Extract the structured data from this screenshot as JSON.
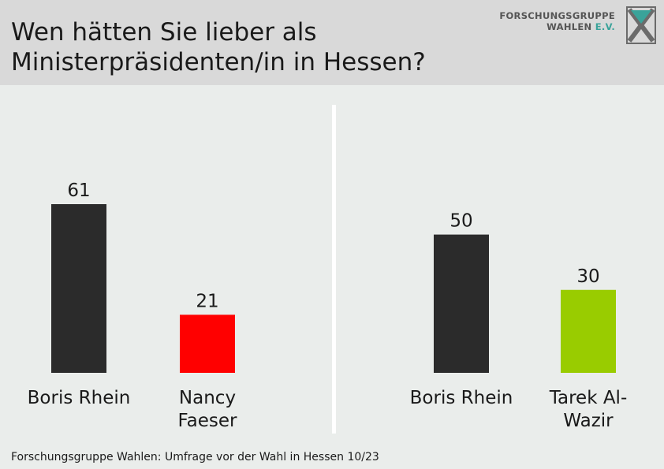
{
  "title": "Wen hätten Sie lieber als\nMinisterpräsidenten/in in Hessen?",
  "logo": {
    "line1": "FORSCHUNGSGRUPPE",
    "line2_main": "WAHLEN",
    "line2_suffix": "E.V."
  },
  "source": "Forschungsgruppe Wahlen: Umfrage vor der Wahl in Hessen 10/23",
  "chart_data": [
    {
      "type": "bar",
      "categories": [
        "Boris Rhein",
        "Nancy\nFaeser"
      ],
      "values": [
        61,
        21
      ],
      "colors": [
        "#2b2b2b",
        "#ff0000"
      ]
    },
    {
      "type": "bar",
      "categories": [
        "Boris Rhein",
        "Tarek Al-\nWazir"
      ],
      "values": [
        50,
        30
      ],
      "colors": [
        "#2b2b2b",
        "#99cc00"
      ]
    }
  ]
}
